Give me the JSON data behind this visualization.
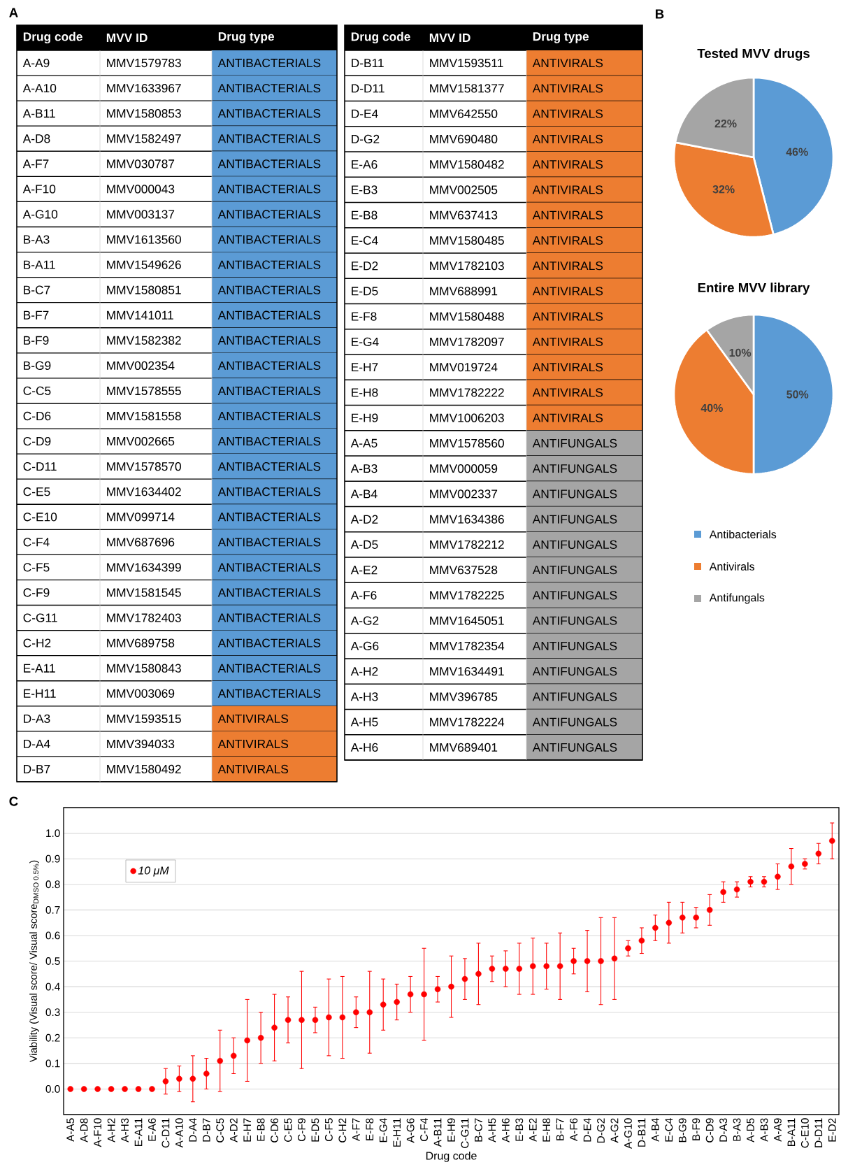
{
  "chart_data": [
    {
      "type": "other",
      "annotations": [
        "A"
      ],
      "cell_labels": [
        [
          "Drug code",
          "MVV ID",
          "Drug type"
        ],
        [
          "A-A9",
          "MMV1579783",
          "ANTIBACTERIALS"
        ],
        [
          "A-A10",
          "MMV1633967",
          "ANTIBACTERIALS"
        ],
        [
          "A-B11",
          "MMV1580853",
          "ANTIBACTERIALS"
        ],
        [
          "A-D8",
          "MMV1582497",
          "ANTIBACTERIALS"
        ],
        [
          "A-F7",
          "MMV030787",
          "ANTIBACTERIALS"
        ],
        [
          "A-F10",
          "MMV000043",
          "ANTIBACTERIALS"
        ],
        [
          "A-G10",
          "MMV003137",
          "ANTIBACTERIALS"
        ],
        [
          "B-A3",
          "MMV1613560",
          "ANTIBACTERIALS"
        ],
        [
          "B-A11",
          "MMV1549626",
          "ANTIBACTERIALS"
        ],
        [
          "B-C7",
          "MMV1580851",
          "ANTIBACTERIALS"
        ],
        [
          "B-F7",
          "MMV141011",
          "ANTIBACTERIALS"
        ],
        [
          "B-F9",
          "MMV1582382",
          "ANTIBACTERIALS"
        ],
        [
          "B-G9",
          "MMV002354",
          "ANTIBACTERIALS"
        ],
        [
          "C-C5",
          "MMV1578555",
          "ANTIBACTERIALS"
        ],
        [
          "C-D6",
          "MMV1581558",
          "ANTIBACTERIALS"
        ],
        [
          "C-D9",
          "MMV002665",
          "ANTIBACTERIALS"
        ],
        [
          "C-D11",
          "MMV1578570",
          "ANTIBACTERIALS"
        ],
        [
          "C-E5",
          "MMV1634402",
          "ANTIBACTERIALS"
        ],
        [
          "C-E10",
          "MMV099714",
          "ANTIBACTERIALS"
        ],
        [
          "C-F4",
          "MMV687696",
          "ANTIBACTERIALS"
        ],
        [
          "C-F5",
          "MMV1634399",
          "ANTIBACTERIALS"
        ],
        [
          "C-F9",
          "MMV1581545",
          "ANTIBACTERIALS"
        ],
        [
          "C-G11",
          "MMV1782403",
          "ANTIBACTERIALS"
        ],
        [
          "C-H2",
          "MMV689758",
          "ANTIBACTERIALS"
        ],
        [
          "E-A11",
          "MMV1580843",
          "ANTIBACTERIALS"
        ],
        [
          "E-H11",
          "MMV003069",
          "ANTIBACTERIALS"
        ],
        [
          "D-A3",
          "MMV1593515",
          "ANTIVIRALS"
        ],
        [
          "D-A4",
          "MMV394033",
          "ANTIVIRALS"
        ],
        [
          "D-B7",
          "MMV1580492",
          "ANTIVIRALS"
        ]
      ],
      "colors": [
        "#000000",
        "#5b9bd5",
        "#5b9bd5",
        "#5b9bd5",
        "#5b9bd5",
        "#5b9bd5",
        "#5b9bd5",
        "#5b9bd5",
        "#5b9bd5",
        "#5b9bd5",
        "#5b9bd5",
        "#5b9bd5",
        "#5b9bd5",
        "#5b9bd5",
        "#5b9bd5",
        "#5b9bd5",
        "#5b9bd5",
        "#5b9bd5",
        "#5b9bd5",
        "#5b9bd5",
        "#5b9bd5",
        "#5b9bd5",
        "#5b9bd5",
        "#5b9bd5",
        "#5b9bd5",
        "#5b9bd5",
        "#5b9bd5",
        "#ed7d31",
        "#ed7d31",
        "#ed7d31"
      ]
    },
    {
      "type": "other",
      "cell_labels": [
        [
          "Drug code",
          "MVV ID",
          "Drug type"
        ],
        [
          "D-B11",
          "MMV1593511",
          "ANTIVIRALS"
        ],
        [
          "D-D11",
          "MMV1581377",
          "ANTIVIRALS"
        ],
        [
          "D-E4",
          "MMV642550",
          "ANTIVIRALS"
        ],
        [
          "D-G2",
          "MMV690480",
          "ANTIVIRALS"
        ],
        [
          "E-A6",
          "MMV1580482",
          "ANTIVIRALS"
        ],
        [
          "E-B3",
          "MMV002505",
          "ANTIVIRALS"
        ],
        [
          "E-B8",
          "MMV637413",
          "ANTIVIRALS"
        ],
        [
          "E-C4",
          "MMV1580485",
          "ANTIVIRALS"
        ],
        [
          "E-D2",
          "MMV1782103",
          "ANTIVIRALS"
        ],
        [
          "E-D5",
          "MMV688991",
          "ANTIVIRALS"
        ],
        [
          "E-F8",
          "MMV1580488",
          "ANTIVIRALS"
        ],
        [
          "E-G4",
          "MMV1782097",
          "ANTIVIRALS"
        ],
        [
          "E-H7",
          "MMV019724",
          "ANTIVIRALS"
        ],
        [
          "E-H8",
          "MMV1782222",
          "ANTIVIRALS"
        ],
        [
          "E-H9",
          "MMV1006203",
          "ANTIVIRALS"
        ],
        [
          "A-A5",
          "MMV1578560",
          "ANTIFUNGALS"
        ],
        [
          "A-B3",
          "MMV000059",
          "ANTIFUNGALS"
        ],
        [
          "A-B4",
          "MMV002337",
          "ANTIFUNGALS"
        ],
        [
          "A-D2",
          "MMV1634386",
          "ANTIFUNGALS"
        ],
        [
          "A-D5",
          "MMV1782212",
          "ANTIFUNGALS"
        ],
        [
          "A-E2",
          "MMV637528",
          "ANTIFUNGALS"
        ],
        [
          "A-F6",
          "MMV1782225",
          "ANTIFUNGALS"
        ],
        [
          "A-G2",
          "MMV1645051",
          "ANTIFUNGALS"
        ],
        [
          "A-G6",
          "MMV1782354",
          "ANTIFUNGALS"
        ],
        [
          "A-H2",
          "MMV1634491",
          "ANTIFUNGALS"
        ],
        [
          "A-H3",
          "MMV396785",
          "ANTIFUNGALS"
        ],
        [
          "A-H5",
          "MMV1782224",
          "ANTIFUNGALS"
        ],
        [
          "A-H6",
          "MMV689401",
          "ANTIFUNGALS"
        ]
      ],
      "colors": [
        "#000000",
        "#ed7d31",
        "#ed7d31",
        "#ed7d31",
        "#ed7d31",
        "#ed7d31",
        "#ed7d31",
        "#ed7d31",
        "#ed7d31",
        "#ed7d31",
        "#ed7d31",
        "#ed7d31",
        "#ed7d31",
        "#ed7d31",
        "#ed7d31",
        "#ed7d31",
        "#a5a5a5",
        "#a5a5a5",
        "#a5a5a5",
        "#a5a5a5",
        "#a5a5a5",
        "#a5a5a5",
        "#a5a5a5",
        "#a5a5a5",
        "#a5a5a5",
        "#a5a5a5",
        "#a5a5a5",
        "#a5a5a5",
        "#a5a5a5"
      ]
    },
    {
      "type": "pie",
      "title": "Tested MVV drugs",
      "annotations": [
        "B"
      ],
      "categories": [
        null,
        null,
        null
      ],
      "values": [
        46,
        32,
        22
      ],
      "value_labels": [
        "46%",
        "32%",
        "22%"
      ],
      "colors": [
        "#5b9bd5",
        "#ed7d31",
        "#a5a5a5"
      ]
    },
    {
      "type": "pie",
      "title": "Entire MVV library",
      "categories": [
        "Antibacterials",
        "Antivirals",
        "Antifungals"
      ],
      "values": [
        50,
        40,
        10
      ],
      "value_labels": [
        "50%",
        "40%",
        "10%"
      ],
      "colors": [
        "#5b9bd5",
        "#ed7d31",
        "#a5a5a5"
      ],
      "legend": "bottom"
    },
    {
      "type": "scatter",
      "annotations": [
        "C"
      ],
      "xlabel": "Drug code",
      "ylabel": "Viability (Visual score/ Visual score$_{DMSO 0.5%}$)",
      "categories": [
        "A-A5",
        "A-D8",
        "A-F10",
        "A-H2",
        "A-H3",
        "E-A11",
        "E-A6",
        "C-D11",
        "A-A10",
        "D-A4",
        "D-B7",
        "C-C5",
        "A-D2",
        "E-H7",
        "E-B8",
        "C-D6",
        "C-E5",
        "C-F9",
        "E-D5",
        "C-F5",
        "C-H2",
        "A-F7",
        "E-F8",
        "E-G4",
        "E-H11",
        "A-G6",
        "C-F4",
        "A-B11",
        "E-H9",
        "C-G11",
        "B-C7",
        "A-H5",
        "A-H6",
        "E-B3",
        "A-E2",
        "E-H8",
        "B-F7",
        "A-F6",
        "D-E4",
        "D-G2",
        "A-G2",
        "A-G10",
        "D-B11",
        "A-B4",
        "E-C4",
        "B-G9",
        "B-F9",
        "C-D9",
        "D-A3",
        "B-A3",
        "A-D5",
        "A-B3",
        "A-A9",
        "B-A11",
        "C-E10",
        "D-D11",
        "E-D2"
      ],
      "series": [
        {
          "name": "10 μM",
          "color": "#ff0000",
          "values": [
            0,
            0,
            0,
            0,
            0,
            0,
            0,
            0.03,
            0.04,
            0.04,
            0.06,
            0.11,
            0.13,
            0.19,
            0.2,
            0.24,
            0.27,
            0.27,
            0.27,
            0.28,
            0.28,
            0.3,
            0.3,
            0.33,
            0.34,
            0.37,
            0.37,
            0.39,
            0.4,
            0.43,
            0.45,
            0.47,
            0.47,
            0.47,
            0.48,
            0.48,
            0.48,
            0.5,
            0.5,
            0.5,
            0.51,
            0.55,
            0.58,
            0.63,
            0.65,
            0.67,
            0.67,
            0.7,
            0.77,
            0.78,
            0.81,
            0.81,
            0.83,
            0.87,
            0.88,
            0.92,
            0.97
          ],
          "errors": [
            null,
            null,
            null,
            null,
            null,
            null,
            null,
            [
              -0.02,
              0.08
            ],
            [
              -0.01,
              0.09
            ],
            [
              -0.05,
              0.13
            ],
            [
              0.0,
              0.12
            ],
            [
              -0.01,
              0.23
            ],
            [
              0.06,
              0.2
            ],
            [
              0.03,
              0.35
            ],
            [
              0.1,
              0.3
            ],
            [
              0.11,
              0.37
            ],
            [
              0.18,
              0.36
            ],
            [
              0.08,
              0.46
            ],
            [
              0.22,
              0.32
            ],
            [
              0.13,
              0.43
            ],
            [
              0.12,
              0.44
            ],
            [
              0.24,
              0.36
            ],
            [
              0.14,
              0.46
            ],
            [
              0.23,
              0.43
            ],
            [
              0.27,
              0.41
            ],
            [
              0.3,
              0.44
            ],
            [
              0.19,
              0.55
            ],
            [
              0.34,
              0.44
            ],
            [
              0.28,
              0.52
            ],
            [
              0.35,
              0.51
            ],
            [
              0.33,
              0.57
            ],
            [
              0.42,
              0.52
            ],
            [
              0.4,
              0.54
            ],
            [
              0.37,
              0.57
            ],
            [
              0.37,
              0.59
            ],
            [
              0.39,
              0.57
            ],
            [
              0.35,
              0.61
            ],
            [
              0.45,
              0.55
            ],
            [
              0.38,
              0.62
            ],
            [
              0.33,
              0.67
            ],
            [
              0.35,
              0.67
            ],
            [
              0.52,
              0.58
            ],
            [
              0.53,
              0.63
            ],
            [
              0.58,
              0.68
            ],
            [
              0.57,
              0.73
            ],
            [
              0.61,
              0.73
            ],
            [
              0.63,
              0.71
            ],
            [
              0.64,
              0.76
            ],
            [
              0.73,
              0.81
            ],
            [
              0.75,
              0.81
            ],
            [
              0.79,
              0.83
            ],
            [
              0.79,
              0.83
            ],
            [
              0.78,
              0.88
            ],
            [
              0.8,
              0.94
            ],
            [
              0.86,
              0.9
            ],
            [
              0.88,
              0.96
            ],
            [
              0.9,
              1.04
            ]
          ]
        }
      ],
      "ylim": [
        -0.1,
        1.1
      ],
      "yticks": [
        {
          "value": 0,
          "label": "0.0"
        },
        {
          "value": 0.1,
          "label": "0.1"
        },
        {
          "value": 0.2,
          "label": "0.2"
        },
        {
          "value": 0.3,
          "label": "0.3"
        },
        {
          "value": 0.4,
          "label": "0.4"
        },
        {
          "value": 0.5,
          "label": "0.5"
        },
        {
          "value": 0.6,
          "label": "0.6"
        },
        {
          "value": 0.7,
          "label": "0.7"
        },
        {
          "value": 0.8,
          "label": "0.8"
        },
        {
          "value": 0.9,
          "label": "0.9"
        },
        {
          "value": 1.0,
          "label": "1.0"
        }
      ],
      "grid": "y",
      "legend": "top left"
    }
  ]
}
